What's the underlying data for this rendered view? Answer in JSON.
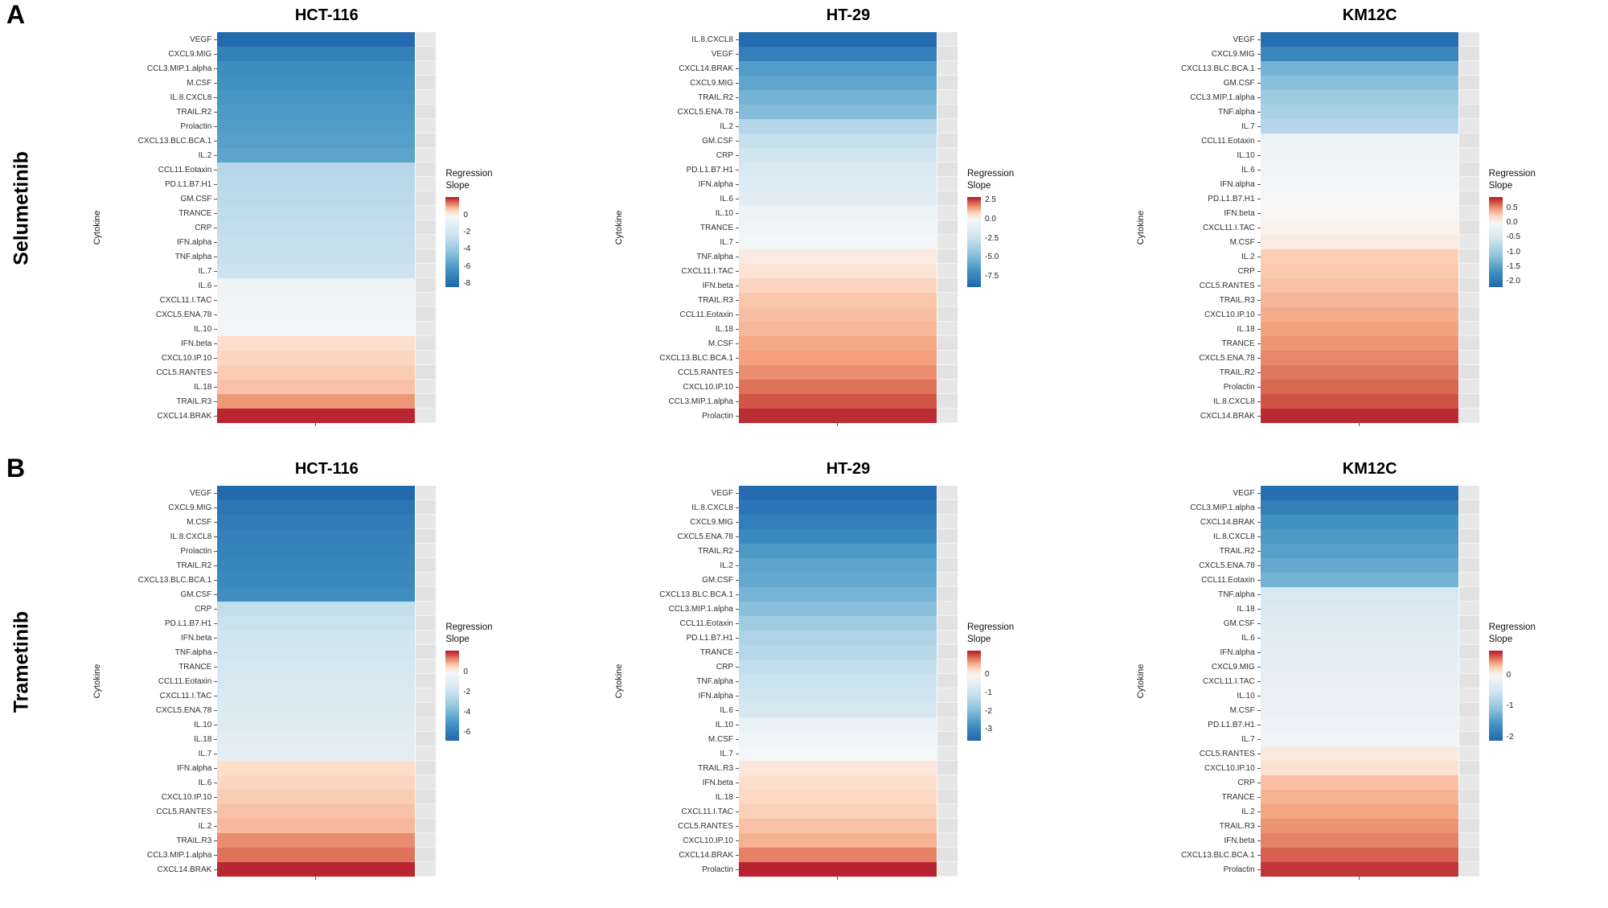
{
  "figure": {
    "sections": [
      {
        "letter": "A",
        "drug": "Selumetinib",
        "panel_indexes": [
          0,
          1,
          2
        ]
      },
      {
        "letter": "B",
        "drug": "Trametinib",
        "panel_indexes": [
          3,
          4,
          5
        ]
      }
    ],
    "y_axis_label": "Cytokine",
    "legend_title": "Regression Slope"
  },
  "colors": {
    "ramp_positive": [
      "#F7F7F7",
      "#FDDBC7",
      "#F4A582",
      "#D6604D",
      "#B2182B"
    ],
    "ramp_negative": [
      "#F7F7F7",
      "#D1E5F0",
      "#92C5DE",
      "#4393C3",
      "#2166AC"
    ],
    "panel_background": "#E8E8E8"
  },
  "chart_data": [
    {
      "type": "heatmap",
      "title": "HCT-116",
      "drug": "Selumetinib",
      "ylabel": "Cytokine",
      "legend_title": "Regression Slope",
      "domain": [
        -8.4,
        2.2
      ],
      "legend_ticks": [
        {
          "label": "0",
          "value": 0
        },
        {
          "label": "-2",
          "value": -2
        },
        {
          "label": "-4",
          "value": -4
        },
        {
          "label": "-6",
          "value": -6
        },
        {
          "label": "-8",
          "value": -8
        }
      ],
      "cytokines": [
        "VEGF",
        "CXCL9.MIG",
        "CCL3.MIP.1.alpha",
        "M.CSF",
        "IL.8.CXCL8",
        "TRAIL.R2",
        "Prolactin",
        "CXCL13.BLC.BCA.1",
        "IL.2",
        "CCL11.Eotaxin",
        "PD.L1.B7.H1",
        "GM.CSF",
        "TRANCE",
        "CRP",
        "IFN.alpha",
        "TNF.alpha",
        "IL.7",
        "IL.6",
        "CXCL11.I.TAC",
        "CXCL5.ENA.78",
        "IL.10",
        "IFN.beta",
        "CXCL10.IP.10",
        "CCL5.RANTES",
        "IL.18",
        "TRAIL.R3",
        "CXCL14.BRAK"
      ],
      "values": [
        -8.2,
        -7.2,
        -6.6,
        -6.4,
        -6.2,
        -6.0,
        -5.9,
        -5.8,
        -5.6,
        -3.0,
        -2.9,
        -2.8,
        -2.7,
        -2.6,
        -2.5,
        -2.4,
        -2.2,
        -0.5,
        -0.4,
        -0.3,
        -0.2,
        0.5,
        0.6,
        0.7,
        0.8,
        1.2,
        2.1
      ]
    },
    {
      "type": "heatmap",
      "title": "HT-29",
      "drug": "Selumetinib",
      "ylabel": "Cytokine",
      "legend_title": "Regression Slope",
      "domain": [
        -8.8,
        2.9
      ],
      "legend_ticks": [
        {
          "label": "2.5",
          "value": 2.5
        },
        {
          "label": "0.0",
          "value": 0
        },
        {
          "label": "-2.5",
          "value": -2.5
        },
        {
          "label": "-5.0",
          "value": -5.0
        },
        {
          "label": "-7.5",
          "value": -7.5
        }
      ],
      "cytokines": [
        "IL.8.CXCL8",
        "VEGF",
        "CXCL14.BRAK",
        "CXCL9.MIG",
        "TRAIL.R2",
        "CXCL5.ENA.78",
        "IL.2",
        "GM.CSF",
        "CRP",
        "PD.L1.B7.H1",
        "IFN.alpha",
        "IL.6",
        "IL.10",
        "TRANCE",
        "IL.7",
        "TNF.alpha",
        "CXCL11.I.TAC",
        "IFN.beta",
        "TRAIL.R3",
        "CCL11.Eotaxin",
        "IL.18",
        "M.CSF",
        "CXCL13.BLC.BCA.1",
        "CCL5.RANTES",
        "CXCL10.IP.10",
        "CCL3.MIP.1.alpha",
        "Prolactin"
      ],
      "values": [
        -8.6,
        -7.6,
        -6.2,
        -5.8,
        -5.2,
        -4.8,
        -3.2,
        -2.6,
        -2.2,
        -1.8,
        -1.5,
        -1.2,
        -0.6,
        -0.4,
        -0.2,
        0.3,
        0.5,
        0.8,
        1.0,
        1.1,
        1.2,
        1.4,
        1.5,
        1.7,
        2.0,
        2.3,
        2.7
      ]
    },
    {
      "type": "heatmap",
      "title": "KM12C",
      "drug": "Selumetinib",
      "ylabel": "Cytokine",
      "legend_title": "Regression Slope",
      "domain": [
        -2.2,
        0.9
      ],
      "legend_ticks": [
        {
          "label": "0.5",
          "value": 0.5
        },
        {
          "label": "0.0",
          "value": 0
        },
        {
          "label": "-0.5",
          "value": -0.5
        },
        {
          "label": "-1.0",
          "value": -1.0
        },
        {
          "label": "-1.5",
          "value": -1.5
        },
        {
          "label": "-2.0",
          "value": -2.0
        }
      ],
      "cytokines": [
        "VEGF",
        "CXCL9.MIG",
        "CXCL13.BLC.BCA.1",
        "GM.CSF",
        "CCL3.MIP.1.alpha",
        "TNF.alpha",
        "IL.7",
        "CCL11.Eotaxin",
        "IL.10",
        "IL.6",
        "IFN.alpha",
        "PD.L1.B7.H1",
        "IFN.beta",
        "CXCL11.I.TAC",
        "M.CSF",
        "IL.2",
        "CRP",
        "CCL5.RANTES",
        "TRAIL.R3",
        "CXCL10.IP.10",
        "IL.18",
        "TRANCE",
        "CXCL5.ENA.78",
        "TRAIL.R2",
        "Prolactin",
        "IL.8.CXCL8",
        "CXCL14.BRAK"
      ],
      "values": [
        -2.1,
        -1.8,
        -1.3,
        -1.15,
        -1.0,
        -0.9,
        -0.8,
        -0.15,
        -0.12,
        -0.1,
        -0.06,
        -0.03,
        0.02,
        0.05,
        0.1,
        0.28,
        0.3,
        0.33,
        0.38,
        0.42,
        0.46,
        0.5,
        0.55,
        0.6,
        0.65,
        0.72,
        0.85
      ]
    },
    {
      "type": "heatmap",
      "title": "HCT-116",
      "drug": "Trametinib",
      "ylabel": "Cytokine",
      "legend_title": "Regression Slope",
      "domain": [
        -6.8,
        2.2
      ],
      "legend_ticks": [
        {
          "label": "0",
          "value": 0
        },
        {
          "label": "-2",
          "value": -2
        },
        {
          "label": "-4",
          "value": -4
        },
        {
          "label": "-6",
          "value": -6
        }
      ],
      "cytokines": [
        "VEGF",
        "CXCL9.MIG",
        "M.CSF",
        "IL.8.CXCL8",
        "Prolactin",
        "TRAIL.R2",
        "CXCL13.BLC.BCA.1",
        "GM.CSF",
        "CRP",
        "PD.L1.B7.H1",
        "IFN.beta",
        "TNF.alpha",
        "TRANCE",
        "CCL11.Eotaxin",
        "CXCL11.I.TAC",
        "CXCL5.ENA.78",
        "IL.10",
        "IL.18",
        "IL.7",
        "IFN.alpha",
        "IL.6",
        "CXCL10.IP.10",
        "CCL5.RANTES",
        "IL.2",
        "TRAIL.R3",
        "CCL3.MIP.1.alpha",
        "CXCL14.BRAK"
      ],
      "values": [
        -6.7,
        -6.2,
        -6.0,
        -5.8,
        -5.7,
        -5.6,
        -5.5,
        -5.3,
        -2.1,
        -1.9,
        -1.7,
        -1.6,
        -1.5,
        -1.4,
        -1.3,
        -1.2,
        -1.1,
        -1.0,
        -0.9,
        0.5,
        0.6,
        0.7,
        0.8,
        0.9,
        1.3,
        1.5,
        2.1
      ]
    },
    {
      "type": "heatmap",
      "title": "HT-29",
      "drug": "Trametinib",
      "ylabel": "Cytokine",
      "legend_title": "Regression Slope",
      "domain": [
        -3.6,
        1.35
      ],
      "legend_ticks": [
        {
          "label": "0",
          "value": 0
        },
        {
          "label": "-1",
          "value": -1
        },
        {
          "label": "-2",
          "value": -2
        },
        {
          "label": "-3",
          "value": -3
        }
      ],
      "cytokines": [
        "VEGF",
        "IL.8.CXCL8",
        "CXCL9.MIG",
        "CXCL5.ENA.78",
        "TRAIL.R2",
        "IL.2",
        "GM.CSF",
        "CXCL13.BLC.BCA.1",
        "CCL3.MIP.1.alpha",
        "CCL11.Eotaxin",
        "PD.L1.B7.H1",
        "TRANCE",
        "CRP",
        "TNF.alpha",
        "IFN.alpha",
        "IL.6",
        "IL.10",
        "M.CSF",
        "IL.7",
        "TRAIL.R3",
        "IFN.beta",
        "IL.18",
        "CXCL11.I.TAC",
        "CCL5.RANTES",
        "CXCL10.IP.10",
        "CXCL14.BRAK",
        "Prolactin"
      ],
      "values": [
        -3.5,
        -3.3,
        -3.1,
        -2.9,
        -2.6,
        -2.4,
        -2.3,
        -2.1,
        -1.9,
        -1.6,
        -1.4,
        -1.3,
        -1.1,
        -1.0,
        -0.9,
        -0.8,
        -0.3,
        -0.15,
        -0.05,
        0.2,
        0.3,
        0.35,
        0.4,
        0.5,
        0.6,
        0.85,
        1.3
      ]
    },
    {
      "type": "heatmap",
      "title": "KM12C",
      "drug": "Trametinib",
      "ylabel": "Cytokine",
      "legend_title": "Regression Slope",
      "domain": [
        -2.1,
        0.8
      ],
      "legend_ticks": [
        {
          "label": "0",
          "value": 0
        },
        {
          "label": "-1",
          "value": -1
        },
        {
          "label": "-2",
          "value": -2
        }
      ],
      "cytokines": [
        "VEGF",
        "CCL3.MIP.1.alpha",
        "CXCL14.BRAK",
        "IL.8.CXCL8",
        "TRAIL.R2",
        "CXCL5.ENA.78",
        "CCL11.Eotaxin",
        "TNF.alpha",
        "IL.18",
        "GM.CSF",
        "IL.6",
        "IFN.alpha",
        "CXCL9.MIG",
        "CXCL11.I.TAC",
        "IL.10",
        "M.CSF",
        "PD.L1.B7.H1",
        "IL.7",
        "CCL5.RANTES",
        "CXCL10.IP.10",
        "CRP",
        "TRANCE",
        "IL.2",
        "TRAIL.R3",
        "IFN.beta",
        "CXCL13.BLC.BCA.1",
        "Prolactin"
      ],
      "values": [
        -2.0,
        -1.8,
        -1.6,
        -1.5,
        -1.45,
        -1.35,
        -1.25,
        -0.45,
        -0.4,
        -0.35,
        -0.3,
        -0.28,
        -0.25,
        -0.22,
        -0.2,
        -0.18,
        -0.15,
        -0.1,
        0.1,
        0.15,
        0.3,
        0.35,
        0.4,
        0.45,
        0.5,
        0.6,
        0.72
      ]
    }
  ]
}
